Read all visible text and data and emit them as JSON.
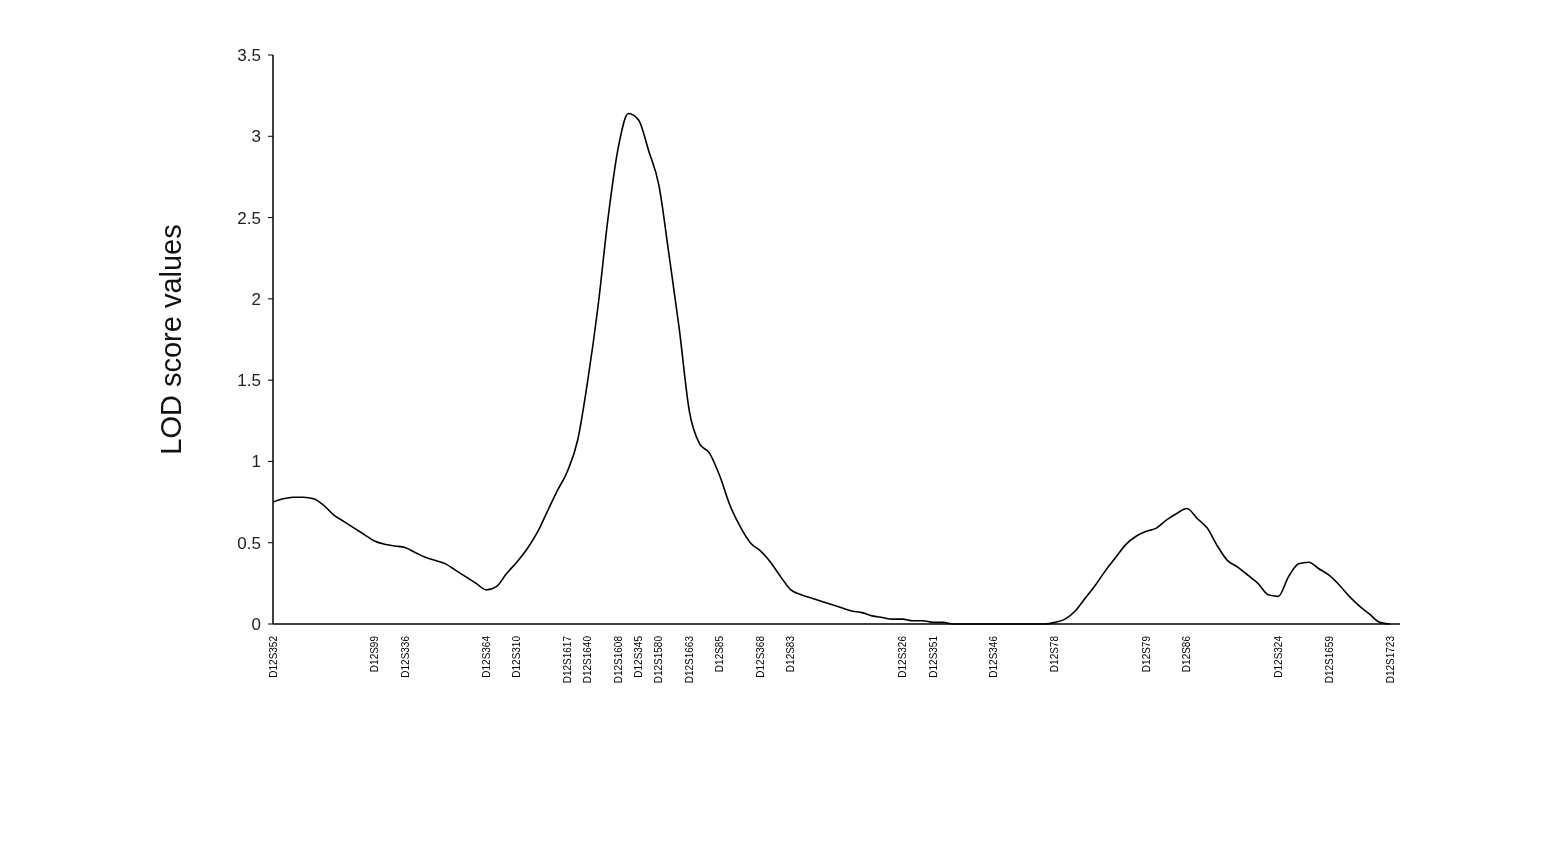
{
  "chart_data": {
    "type": "line",
    "ylabel": "LOD score values",
    "categories": [
      "D12S352",
      null,
      null,
      null,
      null,
      null,
      null,
      null,
      null,
      null,
      "D12S99",
      null,
      null,
      "D12S336",
      null,
      null,
      null,
      null,
      null,
      null,
      null,
      "D12S364",
      null,
      null,
      "D12S310",
      null,
      null,
      null,
      null,
      "D12S1617",
      null,
      "D12S1640",
      null,
      null,
      "D12S1608",
      null,
      "D12S345",
      null,
      "D12S1580",
      null,
      null,
      "D12S1663",
      null,
      null,
      "D12S85",
      null,
      null,
      null,
      "D12S368",
      null,
      null,
      "D12S83",
      null,
      null,
      null,
      null,
      null,
      null,
      null,
      null,
      null,
      null,
      "D12S326",
      null,
      null,
      "D12S351",
      null,
      null,
      null,
      null,
      null,
      "D12S346",
      null,
      null,
      null,
      null,
      null,
      "D12S78",
      null,
      null,
      null,
      null,
      null,
      null,
      null,
      null,
      "D12S79",
      null,
      null,
      null,
      "D12S86",
      null,
      null,
      null,
      null,
      null,
      null,
      null,
      null,
      "D12S324",
      null,
      null,
      null,
      null,
      "D12S1659",
      null,
      null,
      null,
      null,
      null,
      "D12S1723"
    ],
    "series": [
      {
        "color": "#000000",
        "values": [
          0.75,
          0.77,
          0.78,
          0.78,
          0.77,
          0.73,
          0.67,
          0.63,
          0.59,
          0.55,
          0.51,
          0.49,
          0.48,
          0.47,
          0.44,
          0.41,
          0.39,
          0.37,
          0.33,
          0.29,
          0.25,
          0.21,
          0.23,
          0.31,
          0.38,
          0.46,
          0.56,
          0.69,
          0.82,
          0.94,
          1.13,
          1.5,
          1.95,
          2.5,
          2.93,
          3.14,
          3.1,
          2.91,
          2.7,
          2.27,
          1.82,
          1.31,
          1.11,
          1.05,
          0.91,
          0.73,
          0.6,
          0.5,
          0.45,
          0.38,
          0.29,
          0.21,
          0.18,
          0.16,
          0.14,
          0.12,
          0.1,
          0.08,
          0.07,
          0.05,
          0.04,
          0.03,
          0.03,
          0.02,
          0.02,
          0.01,
          0.01,
          0,
          0,
          0,
          0,
          0,
          0,
          0,
          0,
          0,
          0,
          0.01,
          0.03,
          0.08,
          0.16,
          0.24,
          0.33,
          0.41,
          0.49,
          0.54,
          0.57,
          0.59,
          0.64,
          0.68,
          0.71,
          0.65,
          0.59,
          0.48,
          0.39,
          0.35,
          0.3,
          0.25,
          0.18,
          0.17,
          0.29,
          0.37,
          0.38,
          0.34,
          0.3,
          0.24,
          0.17,
          0.11,
          0.06,
          0.01,
          0
        ]
      }
    ],
    "ylim": [
      0,
      3.5
    ],
    "yticks": [
      0,
      0.5,
      1,
      1.5,
      2,
      2.5,
      3,
      3.5
    ],
    "grid": false,
    "marker": "none",
    "line_style": "solid"
  }
}
